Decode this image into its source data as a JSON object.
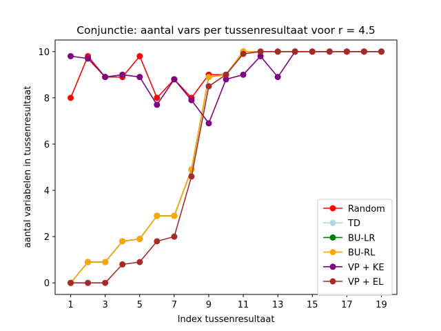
{
  "chart_data": {
    "type": "line",
    "title": "Conjunctie: aantal vars per tussenresultaat voor r = 4.5",
    "xlabel": "Index tussenresultaat",
    "ylabel": "aantal variabelen in tussenresultaat",
    "xlim": [
      0.1,
      19.9
    ],
    "ylim": [
      -0.5,
      10.5
    ],
    "xticks": [
      1,
      3,
      5,
      7,
      9,
      11,
      13,
      15,
      17,
      19
    ],
    "yticks": [
      0,
      2,
      4,
      6,
      8,
      10
    ],
    "grid": false,
    "legend_position": "lower right",
    "x": [
      1,
      2,
      3,
      4,
      5,
      6,
      7,
      8,
      9,
      10,
      11,
      12,
      13,
      14,
      15,
      16,
      17,
      18,
      19
    ],
    "series": [
      {
        "name": "Random",
        "color": "#ff0000",
        "values": [
          8.0,
          9.8,
          8.9,
          8.9,
          9.8,
          8.0,
          8.8,
          8.0,
          9.0,
          9.0,
          10.0,
          10.0,
          10.0,
          10.0,
          10.0,
          10.0,
          10.0,
          10.0,
          10.0
        ]
      },
      {
        "name": "TD",
        "color": "#add8e6",
        "values": [
          0.0,
          0.9,
          0.9,
          1.8,
          1.9,
          2.9,
          2.9,
          4.9,
          8.9,
          9.0,
          10.0,
          10.0,
          10.0,
          10.0,
          10.0,
          10.0,
          10.0,
          10.0,
          10.0
        ]
      },
      {
        "name": "BU-LR",
        "color": "#008000",
        "values": [
          0.0,
          0.9,
          0.9,
          1.8,
          1.9,
          2.9,
          2.9,
          4.9,
          8.9,
          9.0,
          10.0,
          10.0,
          10.0,
          10.0,
          10.0,
          10.0,
          10.0,
          10.0,
          10.0
        ]
      },
      {
        "name": "BU-RL",
        "color": "#ffa500",
        "values": [
          0.0,
          0.9,
          0.9,
          1.8,
          1.9,
          2.9,
          2.9,
          4.9,
          8.9,
          9.0,
          10.0,
          10.0,
          10.0,
          10.0,
          10.0,
          10.0,
          10.0,
          10.0,
          10.0
        ]
      },
      {
        "name": "VP + KE",
        "color": "#800080",
        "values": [
          9.8,
          9.7,
          8.9,
          9.0,
          8.9,
          7.7,
          8.8,
          7.9,
          6.9,
          8.8,
          9.0,
          9.8,
          8.9,
          10.0,
          10.0,
          10.0,
          10.0,
          10.0,
          10.0
        ]
      },
      {
        "name": "VP + EL",
        "color": "#a52a2a",
        "values": [
          0.0,
          0.0,
          0.0,
          0.8,
          0.9,
          1.8,
          2.0,
          4.6,
          8.5,
          9.0,
          9.9,
          10.0,
          10.0,
          10.0,
          10.0,
          10.0,
          10.0,
          10.0,
          10.0
        ]
      }
    ]
  }
}
